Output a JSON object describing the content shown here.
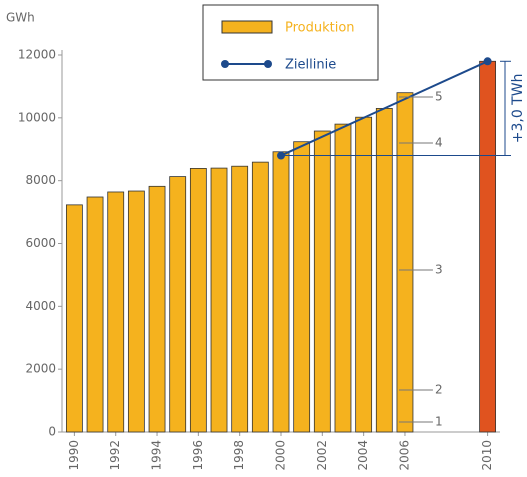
{
  "chart_data": {
    "type": "bar",
    "y_label": "GWh",
    "x": [
      1990,
      1991,
      1992,
      1993,
      1994,
      1995,
      1996,
      1997,
      1998,
      1999,
      2000,
      2001,
      2002,
      2003,
      2004,
      2005,
      2006,
      2010
    ],
    "series": [
      {
        "name": "Produktion",
        "color": "#f5b21e",
        "last_color": "#e0531f",
        "values": [
          7230,
          7480,
          7640,
          7670,
          7820,
          8130,
          8390,
          8400,
          8460,
          8590,
          8920,
          9240,
          9580,
          9800,
          10020,
          10300,
          10800,
          11800
        ]
      },
      {
        "name": "Ziellinie",
        "type": "line",
        "color": "#1d4a8c",
        "values": [
          null,
          null,
          null,
          null,
          null,
          null,
          null,
          null,
          null,
          null,
          8800,
          null,
          null,
          null,
          null,
          null,
          null,
          11800
        ]
      }
    ],
    "xlim": [
      1989.4,
      2010.6
    ],
    "xticks": [
      1990,
      1992,
      1994,
      1996,
      1998,
      2000,
      2002,
      2004,
      2006,
      2010
    ],
    "ylim": [
      0,
      12000
    ],
    "yticks": [
      0,
      2000,
      4000,
      6000,
      8000,
      10000,
      12000
    ],
    "annotation": "+3,0 TWh",
    "segment_labels": [
      "1",
      "2",
      "3",
      "4",
      "5"
    ]
  }
}
